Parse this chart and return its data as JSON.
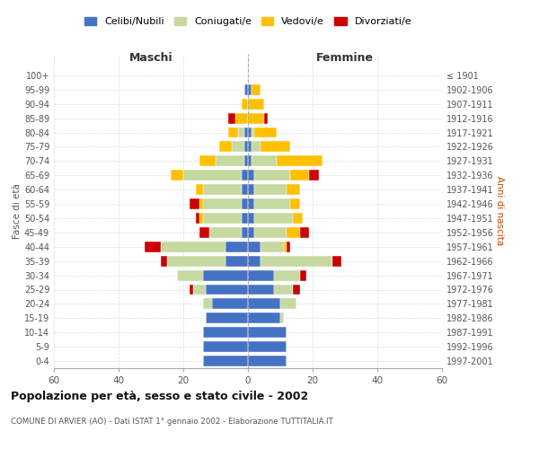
{
  "age_groups": [
    "0-4",
    "5-9",
    "10-14",
    "15-19",
    "20-24",
    "25-29",
    "30-34",
    "35-39",
    "40-44",
    "45-49",
    "50-54",
    "55-59",
    "60-64",
    "65-69",
    "70-74",
    "75-79",
    "80-84",
    "85-89",
    "90-94",
    "95-99",
    "100+"
  ],
  "birth_years": [
    "1997-2001",
    "1992-1996",
    "1987-1991",
    "1982-1986",
    "1977-1981",
    "1972-1976",
    "1967-1971",
    "1962-1966",
    "1957-1961",
    "1952-1956",
    "1947-1951",
    "1942-1946",
    "1937-1941",
    "1932-1936",
    "1927-1931",
    "1922-1926",
    "1917-1921",
    "1912-1916",
    "1907-1911",
    "1902-1906",
    "≤ 1901"
  ],
  "maschi": {
    "celibi": [
      14,
      14,
      14,
      13,
      11,
      13,
      14,
      7,
      7,
      2,
      2,
      2,
      2,
      2,
      1,
      1,
      1,
      0,
      0,
      1,
      0
    ],
    "coniugati": [
      0,
      0,
      0,
      0,
      3,
      4,
      8,
      18,
      20,
      10,
      12,
      12,
      12,
      18,
      9,
      4,
      2,
      0,
      0,
      0,
      0
    ],
    "vedovi": [
      0,
      0,
      0,
      0,
      0,
      0,
      0,
      0,
      0,
      0,
      1,
      1,
      2,
      4,
      5,
      4,
      3,
      4,
      2,
      0,
      0
    ],
    "divorziati": [
      0,
      0,
      0,
      0,
      0,
      1,
      0,
      2,
      5,
      3,
      1,
      3,
      0,
      0,
      0,
      0,
      0,
      2,
      0,
      0,
      0
    ]
  },
  "femmine": {
    "nubili": [
      12,
      12,
      12,
      10,
      10,
      8,
      8,
      4,
      4,
      2,
      2,
      2,
      2,
      2,
      1,
      1,
      1,
      0,
      0,
      1,
      0
    ],
    "coniugate": [
      0,
      0,
      0,
      1,
      5,
      6,
      8,
      22,
      7,
      10,
      12,
      11,
      10,
      11,
      8,
      3,
      1,
      0,
      0,
      0,
      0
    ],
    "vedove": [
      0,
      0,
      0,
      0,
      0,
      0,
      0,
      0,
      1,
      4,
      3,
      3,
      4,
      6,
      14,
      9,
      7,
      5,
      5,
      3,
      0
    ],
    "divorziate": [
      0,
      0,
      0,
      0,
      0,
      2,
      2,
      3,
      1,
      3,
      0,
      0,
      0,
      3,
      0,
      0,
      0,
      1,
      0,
      0,
      0
    ]
  },
  "colors": {
    "celibi": "#4472c4",
    "coniugati": "#c5d9a0",
    "vedovi": "#ffc000",
    "divorziati": "#cc0000"
  },
  "xlim": 60,
  "title": "Popolazione per età, sesso e stato civile - 2002",
  "subtitle": "COMUNE DI ARVIER (AO) - Dati ISTAT 1° gennaio 2002 - Elaborazione TUTTITALIA.IT",
  "ylabel_left": "Fasce di età",
  "ylabel_right": "Anni di nascita",
  "xlabel_left": "Maschi",
  "xlabel_right": "Femmine",
  "legend_labels": [
    "Celibi/Nubili",
    "Coniugati/e",
    "Vedovi/e",
    "Divorziati/e"
  ],
  "bg_color": "#ffffff",
  "grid_color": "#cccccc"
}
